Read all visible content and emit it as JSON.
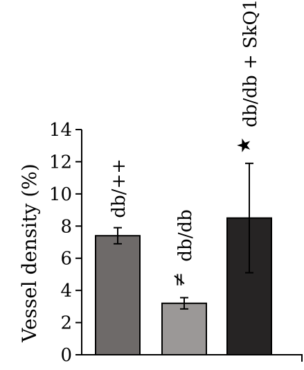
{
  "chart_data": {
    "type": "bar",
    "categories": [
      "db/++",
      "db/db",
      "db/db + SkQ1"
    ],
    "values": [
      7.4,
      3.2,
      8.5
    ],
    "errors": [
      0.5,
      0.35,
      3.4
    ],
    "colors": [
      "#6e6a69",
      "#9b9897",
      "#262424"
    ],
    "markers": [
      "",
      "≠",
      "★"
    ],
    "ylabel": "Vessel density (%)",
    "ylim": [
      0,
      14
    ],
    "yticks": [
      "0",
      "2",
      "4",
      "6",
      "8",
      "10",
      "12",
      "14"
    ],
    "grid": false,
    "legend": "none"
  }
}
